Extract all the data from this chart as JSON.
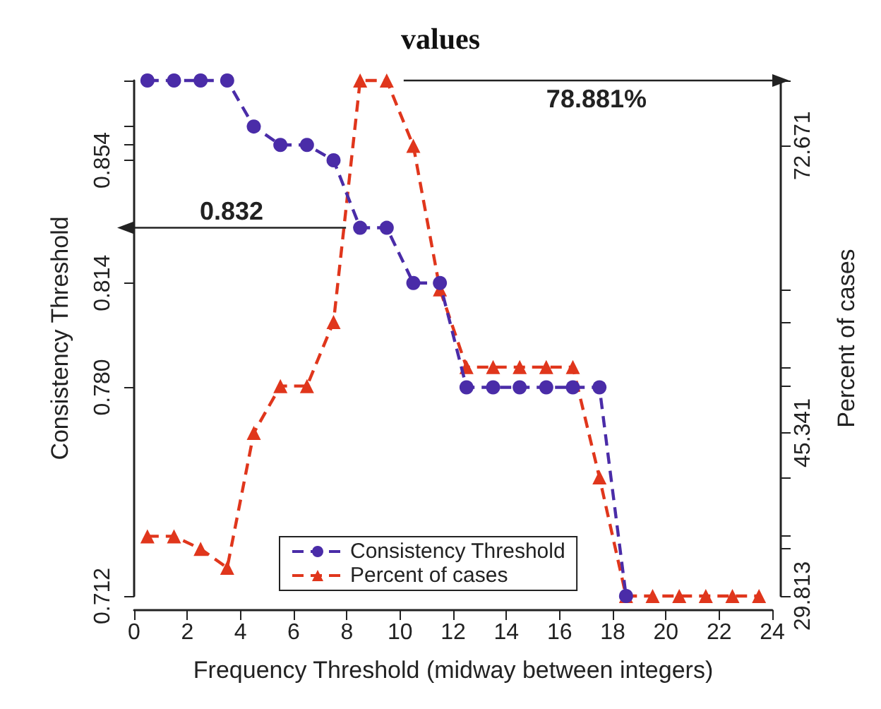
{
  "chart_data": {
    "type": "line",
    "title": "values",
    "xlabel": "Frequency Threshold (midway between integers)",
    "ylabel": "Consistency Threshold",
    "y2label": "Percent of cases",
    "x": [
      0.5,
      1.5,
      2.5,
      3.5,
      4.5,
      5.5,
      6.5,
      7.5,
      8.5,
      9.5,
      10.5,
      11.5,
      12.5,
      13.5,
      14.5,
      15.5,
      16.5,
      17.5,
      18.5,
      19.5,
      20.5,
      21.5,
      22.5,
      23.5
    ],
    "series": [
      {
        "name": "Consistency Threshold",
        "color": "#4a2ca8",
        "marker": "circle",
        "line_style": "dashed",
        "values": [
          0.88,
          0.88,
          0.88,
          0.88,
          0.865,
          0.859,
          0.859,
          0.854,
          0.832,
          0.832,
          0.814,
          0.814,
          0.78,
          0.78,
          0.78,
          0.78,
          0.78,
          0.78,
          0.712,
          null,
          null,
          null,
          null,
          null
        ]
      },
      {
        "name": "Percent of cases",
        "color": "#e0361c",
        "marker": "triangle",
        "line_style": "dashed",
        "axis": "y2",
        "values": [
          35.5,
          35.5,
          34.3,
          32.5,
          45.341,
          49.8,
          49.8,
          55.9,
          78.881,
          78.881,
          72.671,
          59.0,
          51.6,
          51.6,
          51.6,
          51.6,
          51.6,
          41.1,
          29.813,
          29.813,
          29.813,
          29.813,
          29.813,
          29.813
        ]
      }
    ],
    "xlim": [
      0,
      24
    ],
    "xticks": [
      0,
      2,
      4,
      6,
      8,
      10,
      12,
      14,
      16,
      18,
      20,
      22,
      24
    ],
    "ylim": [
      0.712,
      0.88
    ],
    "yticks": [
      0.712,
      {
        "value": 0.78,
        "label": "0.780"
      },
      0.814,
      {
        "value": 0.832,
        "label": null
      },
      0.854,
      {
        "value": 0.859,
        "label": null
      },
      {
        "value": 0.865,
        "label": null
      },
      {
        "value": 0.88,
        "label": null
      }
    ],
    "y2lim": [
      29.813,
      78.881
    ],
    "y2ticks": [
      29.813,
      {
        "value": 34.3,
        "label": null
      },
      {
        "value": 35.5,
        "label": null
      },
      {
        "value": 41.1,
        "label": null
      },
      45.341,
      {
        "value": 49.8,
        "label": null
      },
      {
        "value": 51.6,
        "label": null
      },
      {
        "value": 55.9,
        "label": null
      },
      {
        "value": 59.0,
        "label": null
      },
      72.671,
      {
        "value": 78.881,
        "label": null
      }
    ],
    "ref_lines": [
      {
        "axis": "y",
        "value": 0.832,
        "label": "0.832"
      },
      {
        "axis": "y2",
        "value": 78.881,
        "label": "78.881%"
      }
    ],
    "grid": false,
    "legend": "bottom"
  }
}
